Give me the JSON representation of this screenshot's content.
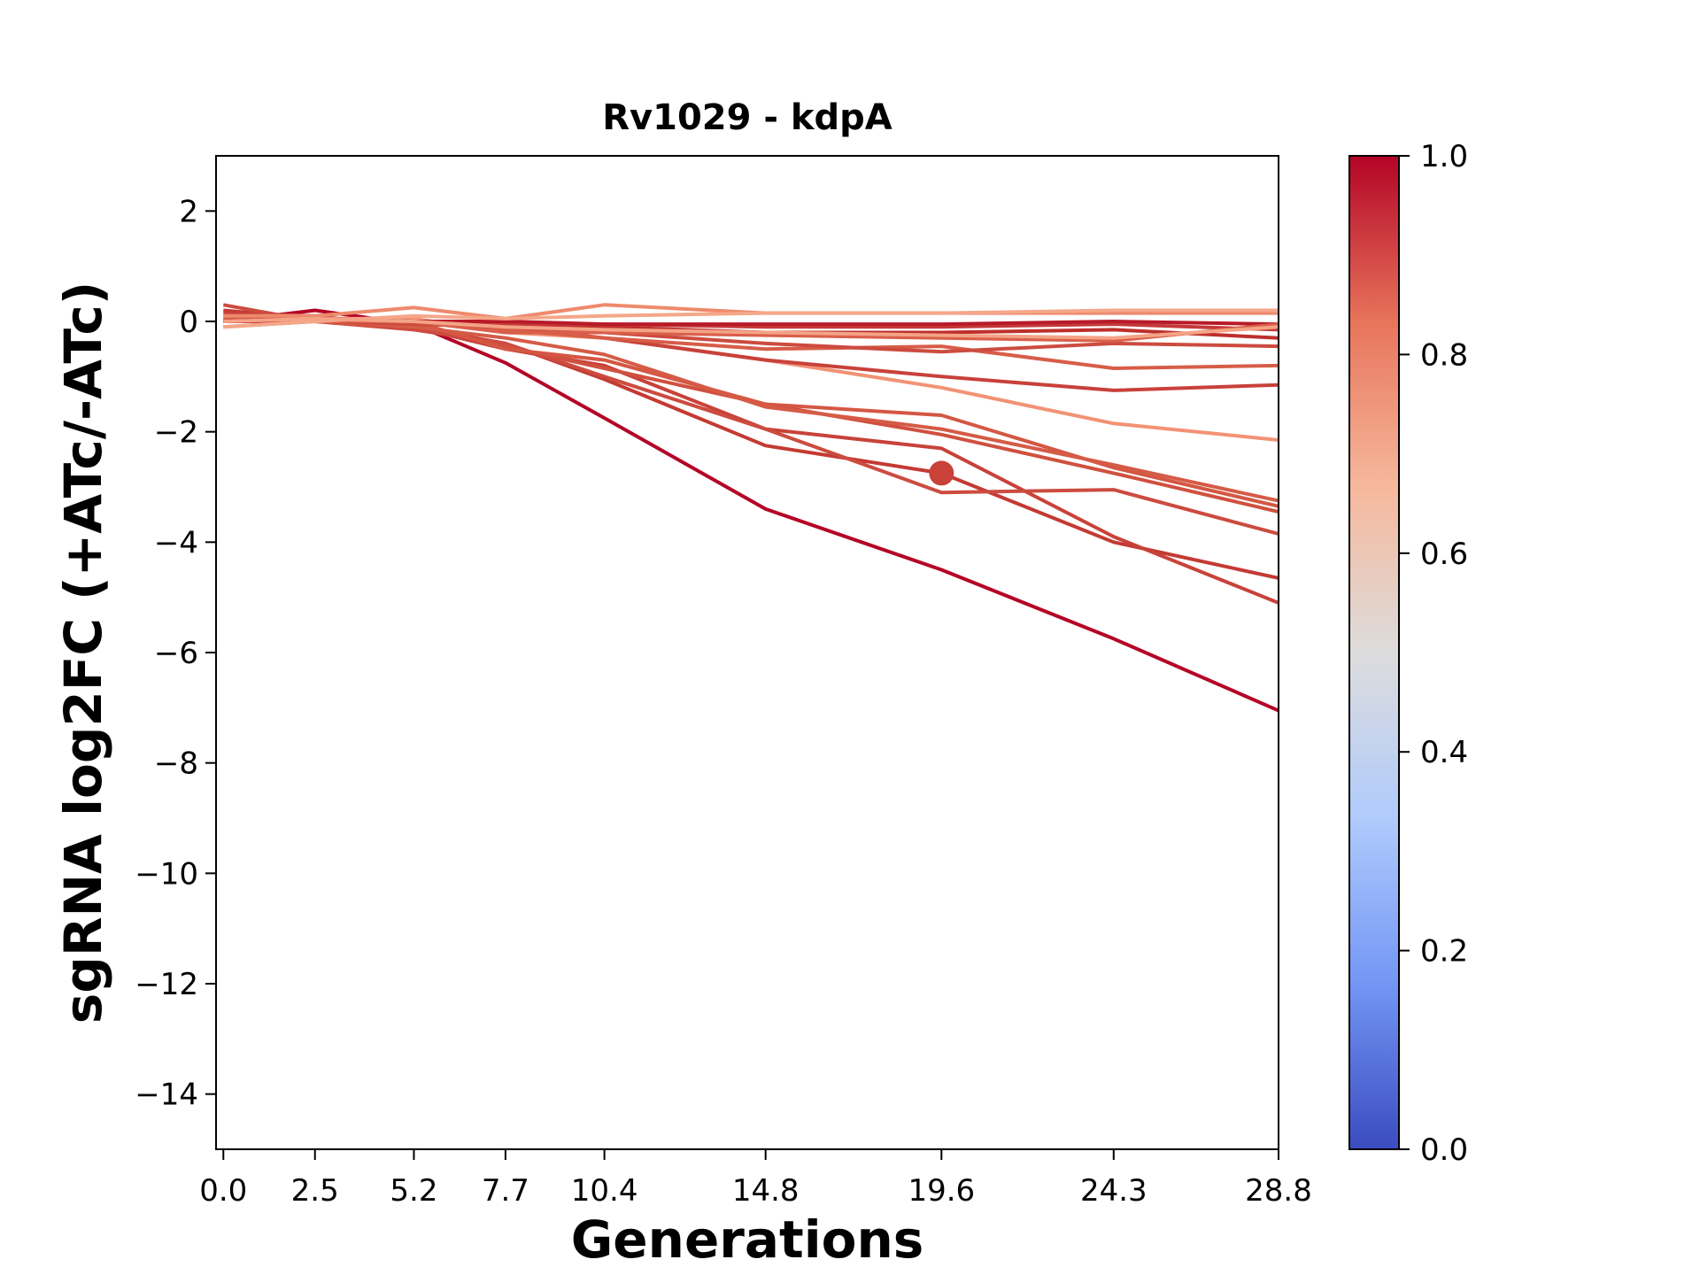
{
  "chart_data": {
    "type": "line",
    "title": "Rv1029 - kdpA",
    "xlabel": "Generations",
    "ylabel": "sgRNA log2FC (+ATc/-ATc)",
    "x": [
      0.0,
      2.5,
      5.2,
      7.7,
      10.4,
      14.8,
      19.6,
      24.3,
      28.8
    ],
    "x_tick_labels": [
      "0.0",
      "2.5",
      "5.2",
      "7.7",
      "10.4",
      "14.8",
      "19.6",
      "24.3",
      "28.8"
    ],
    "xlim": [
      -0.2,
      28.8
    ],
    "ylim": [
      -15,
      3
    ],
    "y_ticks": [
      2,
      0,
      -2,
      -4,
      -6,
      -8,
      -10,
      -12,
      -14
    ],
    "y_tick_labels": [
      "2",
      "0",
      "−2",
      "−4",
      "−6",
      "−8",
      "−10",
      "−12",
      "−14"
    ],
    "colorbar": {
      "range": [
        0,
        1
      ],
      "ticks": [
        0.0,
        0.2,
        0.4,
        0.6,
        0.8,
        1.0
      ],
      "tick_labels": [
        "0.0",
        "0.2",
        "0.4",
        "0.6",
        "0.8",
        "1.0"
      ],
      "colormap": "coolwarm",
      "stops": [
        "#3b4cc0",
        "#7396f5",
        "#b0cbfc",
        "#dddcdc",
        "#f6b89c",
        "#e7745b",
        "#b40426"
      ]
    },
    "highlight_point": {
      "x": 19.6,
      "y": -2.75,
      "color": "#c8423a"
    },
    "series": [
      {
        "color": "#b40426",
        "values": [
          0.0,
          0.2,
          -0.05,
          -0.75,
          -1.75,
          -3.4,
          -4.5,
          -5.75,
          -7.05
        ]
      },
      {
        "color": "#c43a33",
        "values": [
          0.2,
          0.05,
          -0.1,
          -0.4,
          -1.05,
          -2.25,
          -2.75,
          -4.0,
          -4.65
        ]
      },
      {
        "color": "#c8423a",
        "values": [
          0.15,
          0.1,
          -0.1,
          -0.5,
          -0.8,
          -1.95,
          -2.3,
          -3.9,
          -5.1
        ]
      },
      {
        "color": "#cc4b3f",
        "values": [
          0.3,
          0.0,
          -0.15,
          -0.4,
          -1.0,
          -1.95,
          -3.1,
          -3.05,
          -3.85
        ]
      },
      {
        "color": "#d0503f",
        "values": [
          0.1,
          0.05,
          -0.05,
          -0.45,
          -0.85,
          -1.5,
          -2.05,
          -2.75,
          -3.45
        ]
      },
      {
        "color": "#d45743",
        "values": [
          0.0,
          0.0,
          0.0,
          -0.5,
          -0.7,
          -1.5,
          -1.7,
          -2.65,
          -3.35
        ]
      },
      {
        "color": "#d55b46",
        "values": [
          0.05,
          0.0,
          -0.1,
          -0.3,
          -0.6,
          -1.55,
          -1.95,
          -2.6,
          -3.25
        ]
      },
      {
        "color": "#f29274",
        "values": [
          0.0,
          0.05,
          0.05,
          -0.2,
          -0.3,
          -0.7,
          -1.2,
          -1.85,
          -2.15
        ]
      },
      {
        "color": "#c8413a",
        "values": [
          0.0,
          0.05,
          0.0,
          -0.1,
          -0.3,
          -0.7,
          -1.0,
          -1.25,
          -1.15
        ]
      },
      {
        "color": "#d75d48",
        "values": [
          0.05,
          0.0,
          0.0,
          -0.15,
          -0.3,
          -0.5,
          -0.45,
          -0.85,
          -0.8
        ]
      },
      {
        "color": "#cc4b3f",
        "values": [
          0.0,
          0.0,
          -0.05,
          -0.1,
          -0.2,
          -0.4,
          -0.55,
          -0.4,
          -0.45
        ]
      },
      {
        "color": "#be2f2c",
        "values": [
          0.0,
          0.0,
          0.0,
          -0.05,
          -0.1,
          -0.2,
          -0.2,
          -0.15,
          -0.3
        ]
      },
      {
        "color": "#c5393a",
        "values": [
          0.0,
          0.0,
          0.0,
          -0.05,
          -0.05,
          -0.1,
          -0.1,
          -0.05,
          -0.15
        ]
      },
      {
        "color": "#b81a29",
        "values": [
          0.0,
          0.05,
          0.0,
          0.0,
          -0.05,
          -0.05,
          -0.05,
          0.0,
          -0.05
        ]
      },
      {
        "color": "#d95f4a",
        "values": [
          -0.1,
          0.0,
          0.0,
          -0.2,
          -0.2,
          -0.25,
          -0.3,
          -0.35,
          -0.05
        ]
      },
      {
        "color": "#ee8a6d",
        "values": [
          0.1,
          0.1,
          0.25,
          0.05,
          0.3,
          0.15,
          0.15,
          0.15,
          0.15
        ]
      },
      {
        "color": "#f5a78a",
        "values": [
          -0.1,
          0.0,
          0.1,
          0.05,
          0.1,
          0.15,
          0.15,
          0.2,
          0.2
        ]
      },
      {
        "color": "#f4a386",
        "values": [
          0.0,
          0.05,
          0.0,
          -0.1,
          -0.15,
          -0.2,
          -0.25,
          -0.3,
          -0.1
        ]
      }
    ]
  }
}
